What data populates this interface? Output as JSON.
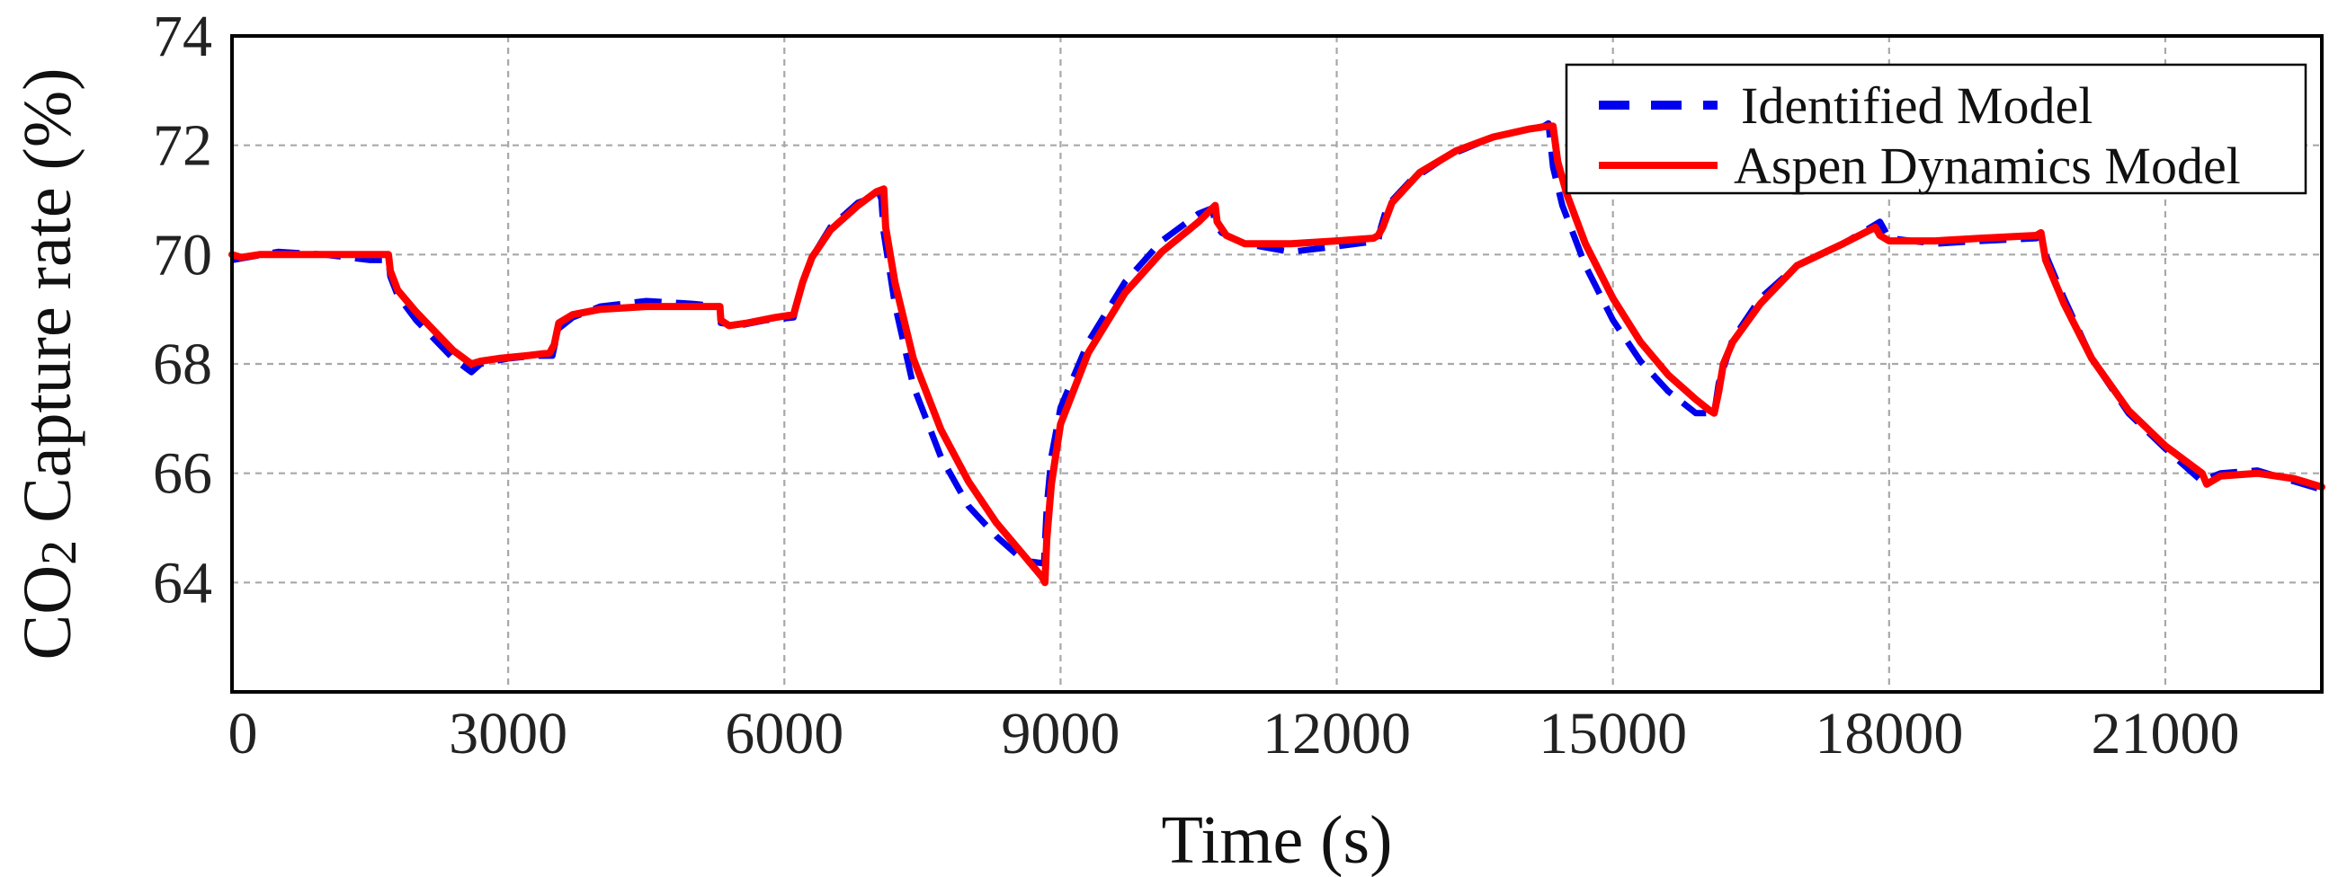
{
  "chart_data": {
    "type": "line",
    "xlabel": "Time (s)",
    "ylabel_parts": [
      "CO",
      "2",
      " Capture rate (%)"
    ],
    "xlim": [
      0,
      22700
    ],
    "ylim": [
      62,
      74
    ],
    "xticks": [
      0,
      3000,
      6000,
      9000,
      12000,
      15000,
      18000,
      21000
    ],
    "yticks": [
      64,
      66,
      68,
      70,
      72,
      74
    ],
    "grid": true,
    "legend_position": "top-right",
    "series": [
      {
        "name": "Identified Model",
        "color": "#0000ee",
        "style": "dashed",
        "x": [
          0,
          500,
          1000,
          1500,
          1700,
          1720,
          1800,
          2000,
          2200,
          2400,
          2600,
          2700,
          3000,
          3300,
          3480,
          3500,
          3550,
          3700,
          4000,
          4500,
          5000,
          5300,
          5310,
          5500,
          5800,
          6100,
          6150,
          6200,
          6300,
          6500,
          6800,
          7050,
          7080,
          7200,
          7400,
          7700,
          8000,
          8300,
          8600,
          8820,
          8850,
          8900,
          9000,
          9300,
          9700,
          10100,
          10500,
          10650,
          10680,
          10750,
          11000,
          11500,
          12000,
          12450,
          12480,
          12550,
          12800,
          13200,
          13700,
          14250,
          14300,
          14350,
          14450,
          14700,
          15000,
          15300,
          15600,
          15900,
          16100,
          16150,
          16300,
          16600,
          17000,
          17500,
          17850,
          17900,
          18000,
          18500,
          19000,
          19600,
          19650,
          19700,
          19900,
          20200,
          20600,
          21000,
          21400,
          21450,
          21600,
          22000,
          22400,
          22700
        ],
        "y": [
          69.9,
          70.05,
          70.0,
          69.9,
          69.9,
          69.6,
          69.25,
          68.8,
          68.45,
          68.1,
          67.85,
          68.0,
          68.1,
          68.15,
          68.15,
          68.3,
          68.65,
          68.85,
          69.05,
          69.15,
          69.1,
          69.05,
          68.75,
          68.7,
          68.8,
          68.85,
          69.2,
          69.5,
          69.95,
          70.5,
          70.95,
          71.1,
          70.4,
          69.1,
          67.6,
          66.3,
          65.4,
          64.85,
          64.4,
          64.35,
          65.4,
          66.3,
          67.2,
          68.4,
          69.5,
          70.25,
          70.75,
          70.85,
          70.55,
          70.4,
          70.2,
          70.05,
          70.15,
          70.25,
          70.5,
          70.9,
          71.35,
          71.8,
          72.15,
          72.35,
          72.4,
          71.6,
          70.9,
          69.8,
          68.8,
          68.05,
          67.5,
          67.1,
          67.1,
          67.65,
          68.45,
          69.2,
          69.8,
          70.2,
          70.55,
          70.6,
          70.3,
          70.2,
          70.25,
          70.3,
          70.35,
          70.0,
          69.2,
          68.1,
          67.1,
          66.45,
          65.85,
          65.9,
          66.0,
          66.05,
          65.85,
          65.7
        ]
      },
      {
        "name": "Aspen Dynamics Model",
        "color": "#ff0000",
        "style": "solid",
        "x": [
          0,
          100,
          300,
          600,
          1000,
          1400,
          1700,
          1720,
          1800,
          2000,
          2200,
          2400,
          2600,
          2700,
          2900,
          3200,
          3450,
          3500,
          3550,
          3700,
          4000,
          4500,
          5000,
          5300,
          5310,
          5400,
          5600,
          5900,
          6100,
          6150,
          6200,
          6300,
          6500,
          6800,
          7000,
          7080,
          7100,
          7200,
          7400,
          7700,
          8000,
          8300,
          8600,
          8800,
          8830,
          8850,
          8900,
          9000,
          9300,
          9700,
          10100,
          10500,
          10650,
          10680,
          10700,
          10800,
          11000,
          11500,
          12000,
          12400,
          12450,
          12500,
          12600,
          12900,
          13300,
          13700,
          14100,
          14300,
          14350,
          14400,
          14500,
          14700,
          15000,
          15300,
          15600,
          15900,
          16050,
          16100,
          16150,
          16200,
          16300,
          16600,
          17000,
          17500,
          17850,
          17900,
          18000,
          18500,
          19000,
          19600,
          19650,
          19700,
          19900,
          20200,
          20600,
          21000,
          21400,
          21450,
          21500,
          21600,
          22000,
          22400,
          22700
        ],
        "y": [
          70.0,
          69.95,
          70.0,
          70.0,
          70.0,
          70.0,
          70.0,
          69.7,
          69.35,
          68.95,
          68.6,
          68.25,
          68.0,
          68.05,
          68.1,
          68.15,
          68.2,
          68.35,
          68.75,
          68.9,
          69.0,
          69.05,
          69.05,
          69.05,
          68.8,
          68.7,
          68.75,
          68.85,
          68.9,
          69.2,
          69.5,
          69.95,
          70.45,
          70.9,
          71.15,
          71.2,
          70.5,
          69.5,
          68.1,
          66.8,
          65.85,
          65.1,
          64.5,
          64.1,
          64.0,
          64.8,
          65.8,
          66.9,
          68.2,
          69.3,
          70.05,
          70.6,
          70.85,
          70.9,
          70.6,
          70.35,
          70.2,
          70.2,
          70.25,
          70.3,
          70.35,
          70.5,
          70.95,
          71.5,
          71.9,
          72.15,
          72.3,
          72.35,
          72.35,
          71.7,
          71.1,
          70.2,
          69.2,
          68.4,
          67.8,
          67.35,
          67.15,
          67.1,
          67.5,
          68.0,
          68.4,
          69.1,
          69.8,
          70.2,
          70.5,
          70.35,
          70.25,
          70.25,
          70.3,
          70.35,
          70.4,
          69.9,
          69.1,
          68.1,
          67.15,
          66.5,
          66.0,
          65.8,
          65.85,
          65.95,
          66.0,
          65.9,
          65.75
        ]
      }
    ]
  }
}
